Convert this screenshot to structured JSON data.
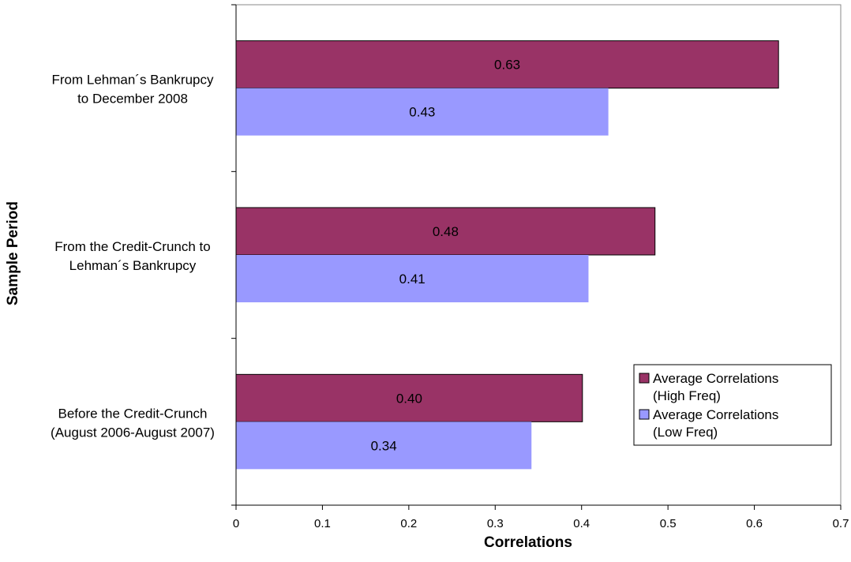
{
  "chart_data": {
    "type": "bar",
    "orientation": "horizontal",
    "categories": [
      [
        "From Lehman´s Bankrupcy",
        "to December 2008"
      ],
      [
        "From the Credit-Crunch to",
        "Lehman´s Bankrupcy"
      ],
      [
        "Before the Credit-Crunch",
        "(August 2006-August 2007)"
      ]
    ],
    "series": [
      {
        "name": [
          "Average Correlations",
          "(High Freq)"
        ],
        "values": [
          0.628,
          0.485,
          0.401
        ],
        "labels": [
          "0.63",
          "0.48",
          "0.40"
        ],
        "color": "#993366"
      },
      {
        "name": [
          "Average Correlations",
          "(Low Freq)"
        ],
        "values": [
          0.431,
          0.408,
          0.342
        ],
        "labels": [
          "0.43",
          "0.41",
          "0.34"
        ],
        "color": "#9999ff"
      }
    ],
    "xlabel": "Correlations",
    "ylabel": "Sample Period",
    "xlim": [
      0,
      0.7
    ],
    "xticks": [
      "0",
      "0.1",
      "0.2",
      "0.3",
      "0.4",
      "0.5",
      "0.6",
      "0.7"
    ],
    "grid": false,
    "legend_position": "right"
  }
}
